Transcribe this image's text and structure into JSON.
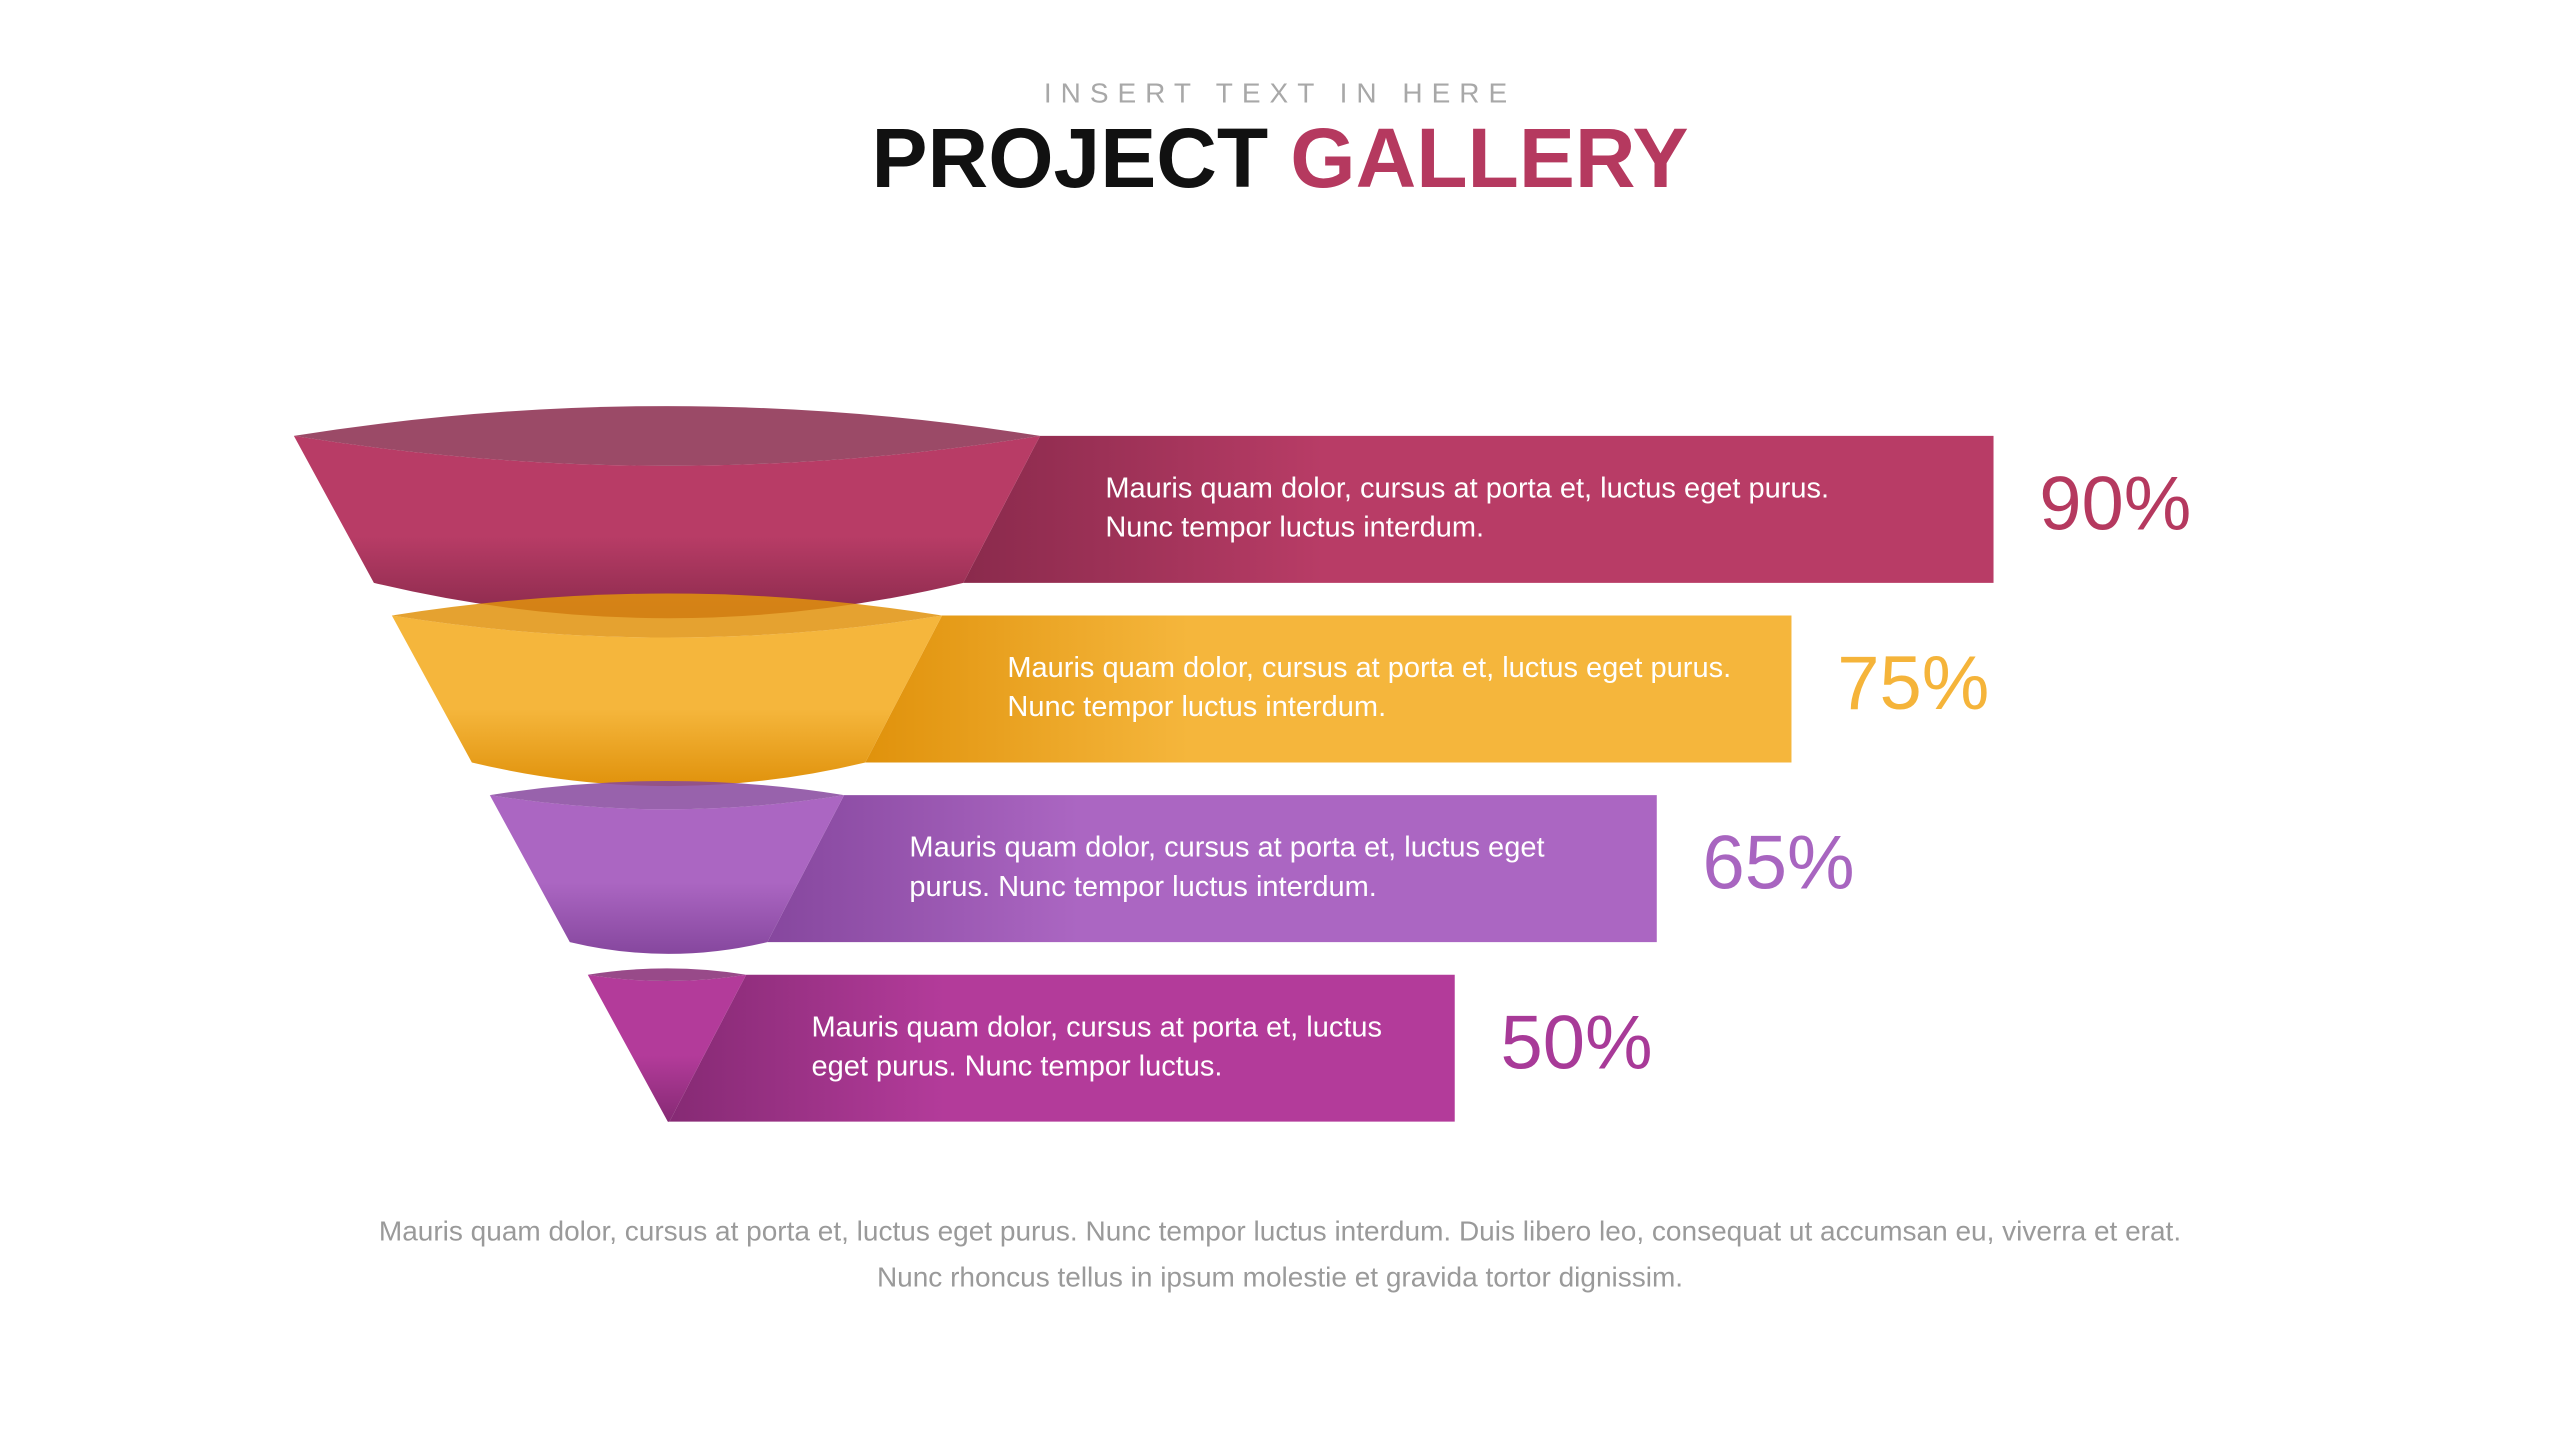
{
  "chart_data": {
    "type": "funnel",
    "subtitle": "INSERT TEXT IN HERE",
    "title": "PROJECT",
    "title_accent": "GALLERY",
    "values": [
      90,
      75,
      65,
      50
    ],
    "value_labels": [
      "90%",
      "75%",
      "65%",
      "50%"
    ],
    "descriptions": [
      [
        "Mauris quam dolor, cursus at porta et, luctus eget purus.",
        "Nunc tempor luctus interdum."
      ],
      [
        "Mauris quam dolor, cursus at porta et, luctus eget purus.",
        "Nunc tempor luctus interdum."
      ],
      [
        "Mauris quam dolor, cursus at porta et, luctus eget",
        "purus. Nunc tempor luctus interdum."
      ],
      [
        "Mauris quam dolor, cursus at porta et, luctus",
        "eget purus. Nunc tempor luctus."
      ]
    ],
    "colors": [
      "#b83c66",
      "#f5b63c",
      "#ab66c2",
      "#b33b9a"
    ],
    "shade_colors": [
      "#8a2a4c",
      "#e0920c",
      "#86479e",
      "#862a74"
    ],
    "label_colors": [
      "#b5395f",
      "#f5b43a",
      "#a865c0",
      "#a83a98"
    ],
    "footer": [
      "Mauris quam dolor, cursus at porta et, luctus eget purus. Nunc tempor luctus interdum. Duis libero leo, consequat ut accumsan eu, viverra et erat.",
      "Nunc rhoncus tellus in ipsum molestie et gravida tortor dignissim."
    ]
  }
}
